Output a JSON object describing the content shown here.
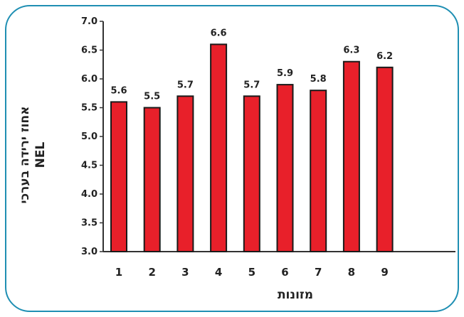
{
  "colors": {
    "bar_fill": "#e8202a",
    "bar_stroke": "#1a1a1a",
    "frame": "#1f8fb3",
    "axis": "#333333",
    "text": "#222222"
  },
  "chart_data": {
    "type": "bar",
    "categories": [
      "1",
      "2",
      "3",
      "4",
      "5",
      "6",
      "7",
      "8",
      "9"
    ],
    "values": [
      5.6,
      5.5,
      5.7,
      6.6,
      5.7,
      5.9,
      5.8,
      6.3,
      6.2
    ],
    "data_labels": [
      "5.6",
      "5.5",
      "5.7",
      "6.6",
      "5.7",
      "5.9",
      "5.8",
      "6.3",
      "6.2"
    ],
    "ylim": [
      3.0,
      7.0
    ],
    "yticks": [
      "3.0",
      "3.5",
      "4.0",
      "4.5",
      "5.0",
      "5.5",
      "6.0",
      "6.5",
      "7.0"
    ],
    "xlabel": "מזונות",
    "ylabel_line1": "אחוז ירידה בערכי",
    "ylabel_line2": "NEL",
    "grid": false,
    "legend": "none"
  }
}
